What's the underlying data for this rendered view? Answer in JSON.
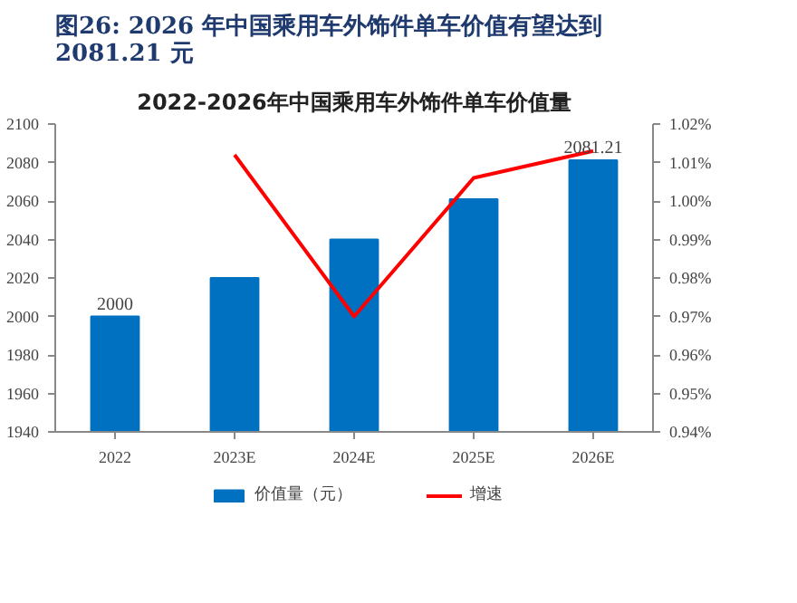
{
  "chart_data": {
    "type": "bar",
    "title": "图26: 2026 年中国乘用车外饰件单车价值有望达到 2081.21 元",
    "subtitle": "2022-2026年中国乘用车外饰件单车价值量",
    "categories": [
      "2022",
      "2023E",
      "2024E",
      "2025E",
      "2026E"
    ],
    "series": [
      {
        "name": "价值量（元）",
        "color": "#0070c0",
        "values": [
          2000,
          2020,
          2040,
          2061,
          2081.21
        ],
        "value_labels": [
          "2000",
          null,
          null,
          null,
          "2081.21"
        ]
      },
      {
        "name": "增速",
        "type": "line",
        "axis": "y2",
        "color": "#ff0000",
        "values": [
          null,
          1.012,
          0.97,
          1.006,
          1.013
        ]
      }
    ],
    "ylim": [
      1940,
      2100
    ],
    "yticks": [
      1940,
      1960,
      1980,
      2000,
      2020,
      2040,
      2060,
      2080,
      2100
    ],
    "y2lim": [
      0.94,
      1.02
    ],
    "y2ticks": [
      {
        "value": 0.94,
        "label": "0.94%"
      },
      {
        "value": 0.95,
        "label": "0.95%"
      },
      {
        "value": 0.96,
        "label": "0.96%"
      },
      {
        "value": 0.97,
        "label": "0.97%"
      },
      {
        "value": 0.98,
        "label": "0.98%"
      },
      {
        "value": 0.99,
        "label": "0.99%"
      },
      {
        "value": 1.0,
        "label": "1.00%"
      },
      {
        "value": 1.01,
        "label": "1.01%"
      },
      {
        "value": 1.02,
        "label": "1.02%"
      }
    ],
    "grid": false,
    "legend": "bottom",
    "marker": "none",
    "line_style": "solid"
  }
}
